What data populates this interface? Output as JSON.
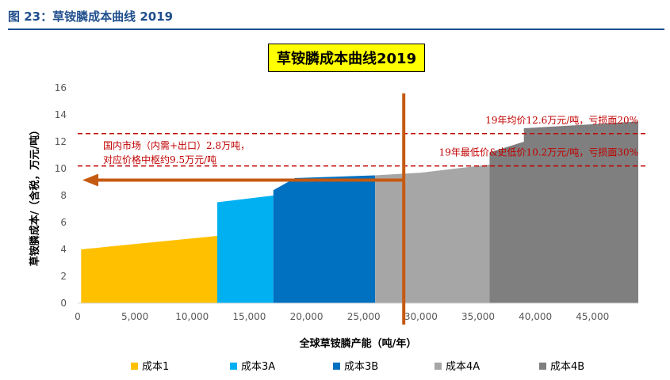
{
  "header": {
    "figure_label": "图 23：草铵膦成本曲线 2019"
  },
  "chart_data": {
    "type": "area",
    "title": "草铵膦成本曲线2019",
    "xlabel": "全球草铵膦产能（吨/年）",
    "ylabel": "草铵膦成本/（含税，万元/吨）",
    "xlim": [
      0,
      49000
    ],
    "ylim": [
      0,
      16
    ],
    "x_ticks": [
      0,
      5000,
      10000,
      15000,
      20000,
      25000,
      30000,
      35000,
      40000,
      45000
    ],
    "x_tick_labels": [
      "0",
      "5,000",
      "10,000",
      "15,000",
      "20,000",
      "25,000",
      "30,000",
      "35,000",
      "40,000",
      "45,000"
    ],
    "y_ticks": [
      0,
      2,
      4,
      6,
      8,
      10,
      12,
      14,
      16
    ],
    "y_tick_labels": [
      "0",
      "2",
      "4",
      "6",
      "8",
      "10",
      "12",
      "14",
      "16"
    ],
    "grid": false,
    "legend_position": "bottom",
    "series": [
      {
        "name": "成本1",
        "color": "#ffc000",
        "points": [
          [
            300,
            4.0
          ],
          [
            12200,
            5.0
          ]
        ]
      },
      {
        "name": "成本3A",
        "color": "#00b0f0",
        "points": [
          [
            12200,
            7.5
          ],
          [
            17100,
            8.0
          ]
        ]
      },
      {
        "name": "成本3B",
        "color": "#0070c0",
        "points": [
          [
            17100,
            8.4
          ],
          [
            19000,
            9.3
          ],
          [
            26000,
            9.5
          ]
        ]
      },
      {
        "name": "成本4A",
        "color": "#a6a6a6",
        "points": [
          [
            26000,
            9.5
          ],
          [
            30000,
            9.7
          ],
          [
            36000,
            10.3
          ]
        ]
      },
      {
        "name": "成本4B",
        "color": "#7f7f7f",
        "points": [
          [
            36000,
            11.2
          ],
          [
            39000,
            12.0
          ],
          [
            39000,
            13.0
          ],
          [
            49000,
            13.5
          ]
        ]
      }
    ],
    "reference_lines": [
      {
        "y": 12.6,
        "label": "19年均价12.6万元/吨，亏损面20%",
        "color": "#c00000"
      },
      {
        "y": 10.2,
        "label": "19年最低价&史低价10.2万元/吨，亏损面30%",
        "color": "#c00000"
      }
    ],
    "domestic_market": {
      "capacity_x": 28500,
      "price_y": 9.5,
      "label_line1": "国内市场（内需+出口）2.8万吨，",
      "label_line2": "对应价格中枢约9.5万元/吨",
      "color": "#c55a11"
    }
  }
}
